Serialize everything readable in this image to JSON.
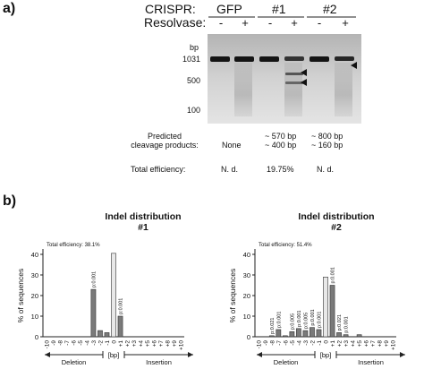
{
  "panel_a": {
    "label": "a)",
    "crispr_label": "CRISPR:",
    "resolvase_label": "Resolvase:",
    "groups": [
      "GFP",
      "#1",
      "#2"
    ],
    "lanes": [
      "-",
      "+",
      "-",
      "+",
      "-",
      "+"
    ],
    "bp_unit": "bp",
    "markers": [
      "1031",
      "500",
      "100"
    ],
    "predicted_label_1": "Predicted",
    "predicted_label_2": "cleavage products:",
    "predicted": [
      {
        "line1": "None",
        "line2": ""
      },
      {
        "line1": "~ 570 bp",
        "line2": "~ 400 bp"
      },
      {
        "line1": "~ 800 bp",
        "line2": "~ 160 bp"
      }
    ],
    "efficiency_label": "Total efficiency:",
    "efficiency": [
      "N. d.",
      "19.75%",
      "N. d."
    ]
  },
  "panel_b": {
    "label": "b)"
  },
  "chart_data": [
    {
      "type": "bar",
      "title": "Indel distribution",
      "subtitle": "#1",
      "annotation": "Total efficiency: 38.1%",
      "ylabel": "% of sequences",
      "xlabel": "[bp]",
      "deletion_label": "Deletion",
      "insertion_label": "Insertion",
      "ylim": [
        0,
        40
      ],
      "yticks": [
        "0",
        "10",
        "20",
        "30",
        "40"
      ],
      "categories": [
        "-10",
        "-9",
        "-8",
        "-7",
        "-6",
        "-5",
        "-4",
        "-3",
        "-2",
        "-1",
        "0",
        "+1",
        "+2",
        "+3",
        "+4",
        "+5",
        "+6",
        "+7",
        "+8",
        "+9",
        "+10"
      ],
      "values": [
        0,
        0,
        0,
        0,
        0,
        0,
        0,
        23,
        3,
        2,
        40.5,
        10,
        0,
        0,
        0,
        0,
        0,
        0,
        0,
        0,
        0
      ],
      "pvalues": [
        {
          "category": "-3",
          "text": "p:0.001"
        },
        {
          "category": "+1",
          "text": "p:0.001"
        }
      ],
      "colors": {
        "dark": "#7a7a7a",
        "light": "#e8e8e8"
      }
    },
    {
      "type": "bar",
      "title": "Indel distribution",
      "subtitle": "#2",
      "annotation": "Total efficiency: 51.4%",
      "ylabel": "% of sequences",
      "xlabel": "[bp]",
      "deletion_label": "Deletion",
      "insertion_label": "Insertion",
      "ylim": [
        0,
        40
      ],
      "yticks": [
        "0",
        "10",
        "20",
        "30",
        "40"
      ],
      "categories": [
        "-10",
        "-9",
        "-8",
        "-7",
        "-6",
        "-5",
        "-4",
        "-3",
        "-2",
        "-1",
        "0",
        "+1",
        "+2",
        "+3",
        "+4",
        "+5",
        "+6",
        "+7",
        "+8",
        "+9",
        "+10"
      ],
      "values": [
        0,
        0,
        0.5,
        3.5,
        0.5,
        2.5,
        4,
        3,
        4.5,
        3.5,
        29,
        25,
        2,
        1,
        0,
        1,
        0,
        0,
        0,
        0,
        0
      ],
      "pvalues": [
        {
          "category": "-8",
          "text": "p:0.021"
        },
        {
          "category": "-7",
          "text": "p:0.001"
        },
        {
          "category": "-5",
          "text": "p:0.005"
        },
        {
          "category": "-4",
          "text": "p:0.001"
        },
        {
          "category": "-3",
          "text": "p:0.005"
        },
        {
          "category": "-2",
          "text": "p:0.001"
        },
        {
          "category": "-1",
          "text": "p:0.001"
        },
        {
          "category": "+1",
          "text": "p:0.001"
        },
        {
          "category": "+2",
          "text": "p:0.021"
        },
        {
          "category": "+3",
          "text": "p:0.001"
        }
      ],
      "colors": {
        "dark": "#7a7a7a",
        "light": "#e8e8e8"
      }
    }
  ]
}
